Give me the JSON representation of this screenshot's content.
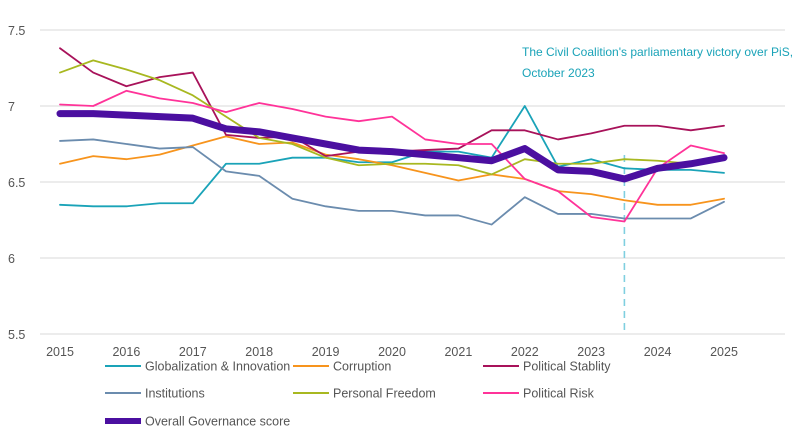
{
  "chart_data": {
    "type": "line",
    "title": "",
    "xlabel": "",
    "ylabel": "",
    "ylim": [
      5.5,
      7.5
    ],
    "yticks": [
      "5.5",
      "6",
      "6.5",
      "7",
      "7.5"
    ],
    "xticks": [
      "2015",
      "2016",
      "2017",
      "2018",
      "2019",
      "2020",
      "2021",
      "2022",
      "2023",
      "2024",
      "2025"
    ],
    "x": [
      2015,
      2015.5,
      2016,
      2016.5,
      2017,
      2017.5,
      2018,
      2018.5,
      2019,
      2019.5,
      2020,
      2020.5,
      2021,
      2021.5,
      2022,
      2022.5,
      2023,
      2023.5,
      2024,
      2024.5,
      2025
    ],
    "grid": "horizontal",
    "legend_position": "bottom",
    "annotation": {
      "line1": "The Civil Coalition's parliamentary victory over PiS,",
      "line2": "October 2023",
      "x": 2023.5,
      "color": "#1AA3B8"
    },
    "series": [
      {
        "name": "Globalization & Innovation",
        "color": "#1AA3B8",
        "width": 1.8,
        "values": [
          6.35,
          6.34,
          6.34,
          6.36,
          6.36,
          6.62,
          6.62,
          6.66,
          6.66,
          6.63,
          6.63,
          6.7,
          6.7,
          6.66,
          7.0,
          6.6,
          6.65,
          6.59,
          6.58,
          6.58,
          6.56
        ]
      },
      {
        "name": "Corruption",
        "color": "#F7941D",
        "width": 1.8,
        "values": [
          6.62,
          6.67,
          6.65,
          6.68,
          6.74,
          6.8,
          6.75,
          6.76,
          6.68,
          6.65,
          6.61,
          6.56,
          6.51,
          6.55,
          6.52,
          6.44,
          6.42,
          6.38,
          6.35,
          6.35,
          6.39
        ]
      },
      {
        "name": "Political Stablity",
        "color": "#A8125A",
        "width": 1.8,
        "values": [
          7.38,
          7.22,
          7.13,
          7.19,
          7.22,
          6.81,
          6.79,
          6.8,
          6.67,
          6.7,
          6.7,
          6.71,
          6.72,
          6.84,
          6.84,
          6.78,
          6.82,
          6.87,
          6.87,
          6.84,
          6.87
        ]
      },
      {
        "name": "Institutions",
        "color": "#6B8CAE",
        "width": 1.8,
        "values": [
          6.77,
          6.78,
          6.75,
          6.72,
          6.73,
          6.57,
          6.54,
          6.39,
          6.34,
          6.31,
          6.31,
          6.28,
          6.28,
          6.22,
          6.4,
          6.29,
          6.29,
          6.26,
          6.26,
          6.26,
          6.37
        ]
      },
      {
        "name": "Personal Freedom",
        "color": "#A8B820",
        "width": 1.8,
        "values": [
          7.22,
          7.3,
          7.24,
          7.17,
          7.07,
          6.93,
          6.79,
          6.75,
          6.66,
          6.61,
          6.62,
          6.62,
          6.61,
          6.55,
          6.65,
          6.62,
          6.62,
          6.65,
          6.64,
          6.62,
          6.66
        ]
      },
      {
        "name": "Political Risk",
        "color": "#FF3399",
        "width": 1.8,
        "values": [
          7.01,
          7.0,
          7.1,
          7.05,
          7.02,
          6.96,
          7.02,
          6.98,
          6.93,
          6.9,
          6.93,
          6.78,
          6.75,
          6.75,
          6.52,
          6.44,
          6.27,
          6.24,
          6.59,
          6.74,
          6.69
        ]
      },
      {
        "name": "Overall Governance score",
        "color": "#4B0FA0",
        "width": 7,
        "values": [
          6.95,
          6.95,
          6.94,
          6.93,
          6.92,
          6.85,
          6.83,
          6.79,
          6.75,
          6.71,
          6.7,
          6.68,
          6.66,
          6.64,
          6.72,
          6.58,
          6.57,
          6.52,
          6.59,
          6.62,
          6.66
        ]
      }
    ]
  }
}
